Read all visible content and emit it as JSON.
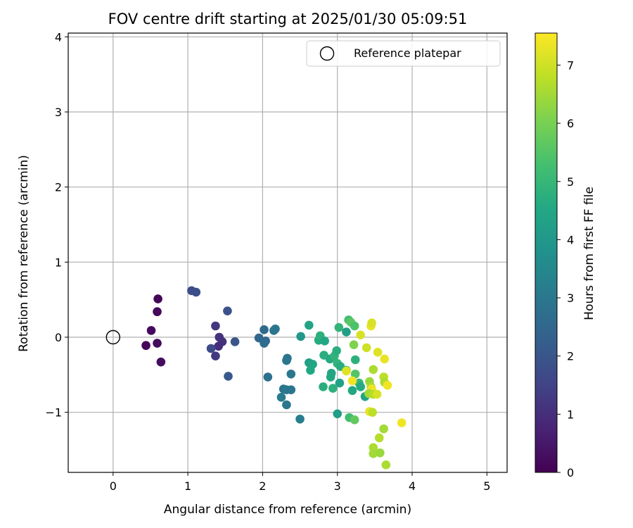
{
  "chart_data": {
    "type": "scatter",
    "title": "FOV centre drift starting at 2025/01/30 05:09:51",
    "xlabel": "Angular distance from reference (arcmin)",
    "ylabel": "Rotation from reference (arcmin)",
    "xlim": [
      -0.6,
      5.27
    ],
    "ylim": [
      -1.8,
      4.05
    ],
    "x_ticks": [
      0,
      1,
      2,
      3,
      4,
      5
    ],
    "y_ticks": [
      -1,
      0,
      1,
      2,
      3,
      4
    ],
    "x_tick_labels": [
      "0",
      "1",
      "2",
      "3",
      "4",
      "5"
    ],
    "y_tick_labels": [
      "−1",
      "0",
      "1",
      "2",
      "3",
      "4"
    ],
    "grid": true,
    "legend": {
      "position": "top-right",
      "entries": [
        "Reference platepar"
      ]
    },
    "reference_point": {
      "x": 0,
      "y": 0,
      "label": "Reference platepar"
    },
    "colorbar": {
      "label": "Hours from first FF file",
      "colormap": "viridis",
      "min": 0,
      "max": 7.55,
      "ticks": [
        0,
        1,
        2,
        3,
        4,
        5,
        6,
        7
      ],
      "tick_labels": [
        "0",
        "1",
        "2",
        "3",
        "4",
        "5",
        "6",
        "7"
      ]
    },
    "points": [
      {
        "x": 0.6,
        "y": 0.51,
        "c": 0.1
      },
      {
        "x": 0.59,
        "y": 0.34,
        "c": 0.15
      },
      {
        "x": 0.51,
        "y": 0.09,
        "c": 0.2
      },
      {
        "x": 0.44,
        "y": -0.11,
        "c": 0.1
      },
      {
        "x": 0.59,
        "y": -0.08,
        "c": 0.2
      },
      {
        "x": 0.64,
        "y": -0.33,
        "c": 0.25
      },
      {
        "x": 1.05,
        "y": 0.62,
        "c": 1.75
      },
      {
        "x": 1.11,
        "y": 0.6,
        "c": 1.8
      },
      {
        "x": 1.53,
        "y": 0.35,
        "c": 1.9
      },
      {
        "x": 1.37,
        "y": 0.15,
        "c": 1.2
      },
      {
        "x": 1.42,
        "y": 0.0,
        "c": 1.1
      },
      {
        "x": 1.46,
        "y": -0.06,
        "c": 1.05
      },
      {
        "x": 1.41,
        "y": -0.12,
        "c": 1.0
      },
      {
        "x": 1.31,
        "y": -0.15,
        "c": 1.7
      },
      {
        "x": 1.37,
        "y": -0.25,
        "c": 1.25
      },
      {
        "x": 1.63,
        "y": -0.06,
        "c": 2.0
      },
      {
        "x": 1.54,
        "y": -0.52,
        "c": 2.1
      },
      {
        "x": 1.95,
        "y": -0.01,
        "c": 2.5
      },
      {
        "x": 2.02,
        "y": 0.1,
        "c": 2.6
      },
      {
        "x": 2.04,
        "y": -0.05,
        "c": 2.55
      },
      {
        "x": 2.02,
        "y": -0.08,
        "c": 2.7
      },
      {
        "x": 2.15,
        "y": 0.09,
        "c": 2.9
      },
      {
        "x": 2.17,
        "y": 0.11,
        "c": 2.95
      },
      {
        "x": 2.07,
        "y": -0.53,
        "c": 2.85
      },
      {
        "x": 2.33,
        "y": -0.28,
        "c": 2.9
      },
      {
        "x": 2.32,
        "y": -0.31,
        "c": 2.95
      },
      {
        "x": 2.38,
        "y": -0.49,
        "c": 3.0
      },
      {
        "x": 2.28,
        "y": -0.69,
        "c": 2.9
      },
      {
        "x": 2.32,
        "y": -0.7,
        "c": 3.0
      },
      {
        "x": 2.38,
        "y": -0.7,
        "c": 2.95
      },
      {
        "x": 2.25,
        "y": -0.8,
        "c": 3.1
      },
      {
        "x": 2.32,
        "y": -0.9,
        "c": 3.0
      },
      {
        "x": 2.5,
        "y": -1.09,
        "c": 3.2
      },
      {
        "x": 2.51,
        "y": 0.01,
        "c": 4.0
      },
      {
        "x": 2.62,
        "y": 0.16,
        "c": 4.4
      },
      {
        "x": 2.62,
        "y": -0.34,
        "c": 4.3
      },
      {
        "x": 2.67,
        "y": -0.36,
        "c": 4.4
      },
      {
        "x": 2.64,
        "y": -0.44,
        "c": 4.5
      },
      {
        "x": 2.75,
        "y": -0.04,
        "c": 4.6
      },
      {
        "x": 2.77,
        "y": 0.02,
        "c": 4.8
      },
      {
        "x": 2.83,
        "y": -0.05,
        "c": 4.5
      },
      {
        "x": 2.82,
        "y": -0.24,
        "c": 4.7
      },
      {
        "x": 2.9,
        "y": -0.29,
        "c": 4.6
      },
      {
        "x": 2.92,
        "y": -0.48,
        "c": 4.4
      },
      {
        "x": 2.91,
        "y": -0.53,
        "c": 4.5
      },
      {
        "x": 2.81,
        "y": -0.66,
        "c": 4.7
      },
      {
        "x": 2.94,
        "y": -0.68,
        "c": 4.8
      },
      {
        "x": 2.96,
        "y": -0.25,
        "c": 4.9
      },
      {
        "x": 2.99,
        "y": -0.18,
        "c": 4.7
      },
      {
        "x": 3.0,
        "y": -0.35,
        "c": 4.9
      },
      {
        "x": 3.04,
        "y": -0.39,
        "c": 4.7
      },
      {
        "x": 3.03,
        "y": -0.61,
        "c": 4.3
      },
      {
        "x": 3.0,
        "y": -1.02,
        "c": 4.2
      },
      {
        "x": 3.02,
        "y": 0.13,
        "c": 4.9
      },
      {
        "x": 3.12,
        "y": 0.07,
        "c": 4.2
      },
      {
        "x": 3.15,
        "y": 0.23,
        "c": 5.3
      },
      {
        "x": 3.18,
        "y": 0.2,
        "c": 5.6
      },
      {
        "x": 3.23,
        "y": 0.15,
        "c": 5.4
      },
      {
        "x": 3.22,
        "y": -0.1,
        "c": 6.1
      },
      {
        "x": 3.24,
        "y": -0.3,
        "c": 4.8
      },
      {
        "x": 3.12,
        "y": -0.44,
        "c": 5.2
      },
      {
        "x": 3.24,
        "y": -0.49,
        "c": 5.5
      },
      {
        "x": 3.2,
        "y": -0.71,
        "c": 4.5
      },
      {
        "x": 3.29,
        "y": -0.61,
        "c": 5.0
      },
      {
        "x": 3.31,
        "y": -0.66,
        "c": 4.6
      },
      {
        "x": 3.37,
        "y": -0.79,
        "c": 4.4
      },
      {
        "x": 3.16,
        "y": -1.07,
        "c": 5.2
      },
      {
        "x": 3.23,
        "y": -1.1,
        "c": 5.7
      },
      {
        "x": 3.31,
        "y": 0.03,
        "c": 7.1
      },
      {
        "x": 3.39,
        "y": -0.14,
        "c": 7.0
      },
      {
        "x": 3.45,
        "y": 0.15,
        "c": 7.3
      },
      {
        "x": 3.46,
        "y": 0.19,
        "c": 7.1
      },
      {
        "x": 3.54,
        "y": -0.2,
        "c": 7.2
      },
      {
        "x": 3.63,
        "y": -0.29,
        "c": 7.3
      },
      {
        "x": 3.12,
        "y": -0.45,
        "c": 7.2
      },
      {
        "x": 3.2,
        "y": -0.58,
        "c": 7.4
      },
      {
        "x": 3.48,
        "y": -0.43,
        "c": 6.6
      },
      {
        "x": 3.43,
        "y": -0.59,
        "c": 6.4
      },
      {
        "x": 3.45,
        "y": -0.66,
        "c": 6.6
      },
      {
        "x": 3.46,
        "y": -0.69,
        "c": 7.4
      },
      {
        "x": 3.42,
        "y": -0.75,
        "c": 6.5
      },
      {
        "x": 3.48,
        "y": -0.76,
        "c": 6.7
      },
      {
        "x": 3.53,
        "y": -0.76,
        "c": 7.1
      },
      {
        "x": 3.62,
        "y": -0.53,
        "c": 6.8
      },
      {
        "x": 3.63,
        "y": -0.6,
        "c": 6.6
      },
      {
        "x": 3.67,
        "y": -0.64,
        "c": 7.4
      },
      {
        "x": 3.43,
        "y": -0.99,
        "c": 7.3
      },
      {
        "x": 3.47,
        "y": -1.0,
        "c": 6.8
      },
      {
        "x": 3.86,
        "y": -1.14,
        "c": 7.4
      },
      {
        "x": 3.62,
        "y": -1.22,
        "c": 6.5
      },
      {
        "x": 3.56,
        "y": -1.34,
        "c": 6.7
      },
      {
        "x": 3.48,
        "y": -1.47,
        "c": 6.6
      },
      {
        "x": 3.48,
        "y": -1.55,
        "c": 6.5
      },
      {
        "x": 3.57,
        "y": -1.54,
        "c": 6.4
      },
      {
        "x": 3.65,
        "y": -1.7,
        "c": 6.6
      }
    ]
  }
}
